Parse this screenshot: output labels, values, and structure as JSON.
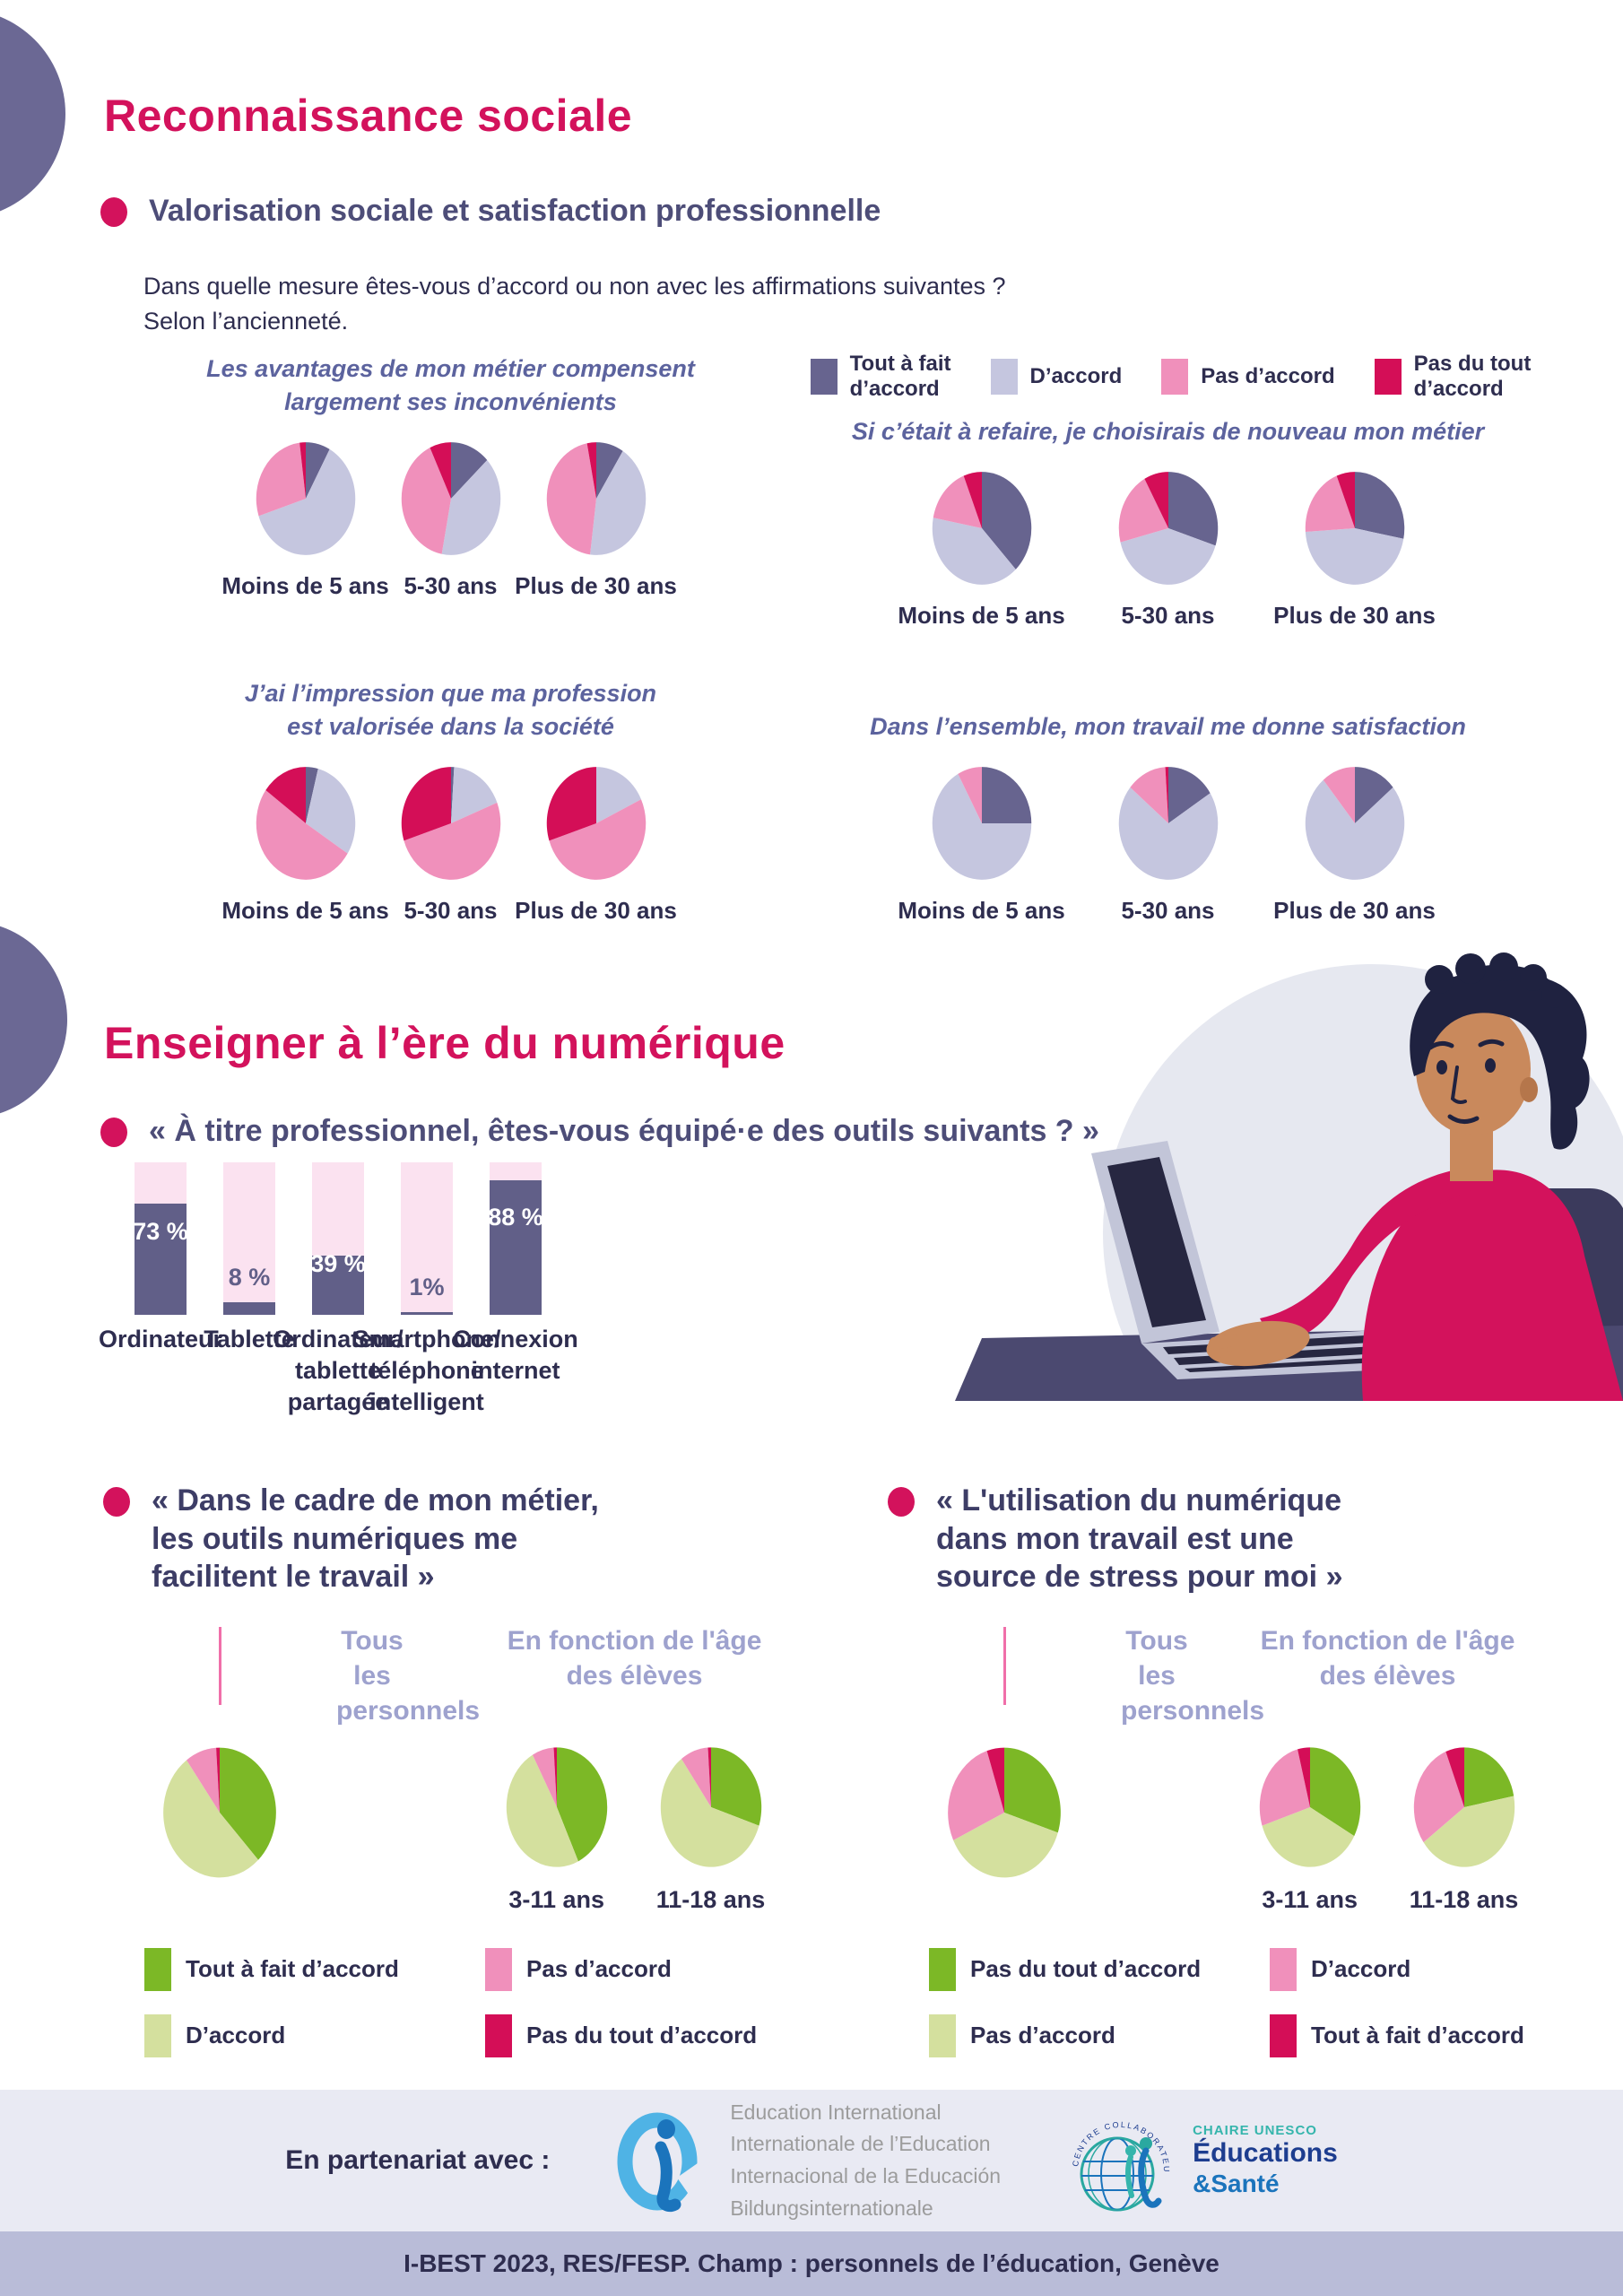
{
  "accent": {
    "magenta": "#D3125C",
    "navy": "#2E2D4F",
    "purple_head": "#4D4D78",
    "lavender_label": "#9EA2CE"
  },
  "section1": {
    "title": "Reconnaissance sociale",
    "subtitle": "Valorisation sociale et satisfaction professionnelle",
    "intro": "Dans quelle mesure êtes-vous d’accord ou non avec les affirmations suivantes ?\nSelon l’ancienneté.",
    "legend": [
      {
        "label": "Tout à fait\nd’accord",
        "color": "#67648F"
      },
      {
        "label": "D’accord",
        "color": "#C5C6DF"
      },
      {
        "label": "Pas d’accord",
        "color": "#F090BB"
      },
      {
        "label": "Pas du tout\nd’accord",
        "color": "#D40E57"
      }
    ]
  },
  "section2": {
    "title": "Enseigner à l’ère du numérique",
    "equip_question": "« À titre professionnel, êtes-vous équipé·e des outils suivants ? »"
  },
  "q_left": {
    "heading": "« Dans le cadre de mon métier,\nles outils numériques me\nfacilitent le travail »",
    "col_left": "Tous les\npersonnels",
    "col_right": "En fonction de l'âge\ndes élèves",
    "legend": [
      {
        "label": "Tout à fait d’accord",
        "color": "#7CB826"
      },
      {
        "label": "Pas d’accord",
        "color": "#F090BB"
      },
      {
        "label": "D’accord",
        "color": "#D4E09E"
      },
      {
        "label": "Pas du tout d’accord",
        "color": "#D40E57"
      }
    ]
  },
  "q_right": {
    "heading": "« L'utilisation du numérique\ndans mon travail est une\nsource de stress pour moi »",
    "col_left": "Tous les\npersonnels",
    "col_right": "En fonction de l'âge\ndes élèves",
    "legend": [
      {
        "label": "Pas du tout d’accord",
        "color": "#7CB826"
      },
      {
        "label": "D’accord",
        "color": "#F090BB"
      },
      {
        "label": "Pas d’accord",
        "color": "#D4E09E"
      },
      {
        "label": "Tout à fait d’accord",
        "color": "#D40E57"
      }
    ]
  },
  "footer": {
    "partner_label": "En partenariat avec :",
    "ei_lines": [
      "Education International",
      "Internationale de l’Education",
      "Internacional de la Educación",
      "Bildungsinternationale"
    ],
    "unesco_arc": "CENTRE COLLABORATEUR UMS",
    "unesco_chaire": "CHAIRE UNESCO",
    "unesco_line1": "Éducations",
    "unesco_line2": "&Santé",
    "footnote": "I-BEST 2023, RES/FESP. Champ : personnels de l’éducation, Genève"
  },
  "chart_data": [
    {
      "type": "pie",
      "title": "Les avantages de mon métier compensent\nlargement ses inconvénients",
      "slice_labels": [
        "Tout à fait d’accord",
        "D’accord",
        "Pas d’accord",
        "Pas du tout d’accord"
      ],
      "slice_colors": [
        "#67648F",
        "#C5C6DF",
        "#F090BB",
        "#D40E57"
      ],
      "unit": "%",
      "pies": [
        {
          "label": "Moins de 5 ans",
          "values": [
            8,
            62,
            28,
            2
          ]
        },
        {
          "label": "5-30 ans",
          "values": [
            13,
            40,
            40,
            7
          ]
        },
        {
          "label": "Plus de 30 ans",
          "values": [
            9,
            43,
            45,
            3
          ]
        }
      ]
    },
    {
      "type": "pie",
      "title": "Si c’était à refaire, je choisirais de nouveau mon métier",
      "slice_labels": [
        "Tout à fait d’accord",
        "D’accord",
        "Pas d’accord",
        "Pas du tout d’accord"
      ],
      "slice_colors": [
        "#67648F",
        "#C5C6DF",
        "#F090BB",
        "#D40E57"
      ],
      "unit": "%",
      "pies": [
        {
          "label": "Moins de 5 ans",
          "values": [
            38,
            40,
            16,
            6
          ]
        },
        {
          "label": "5-30 ans",
          "values": [
            30,
            41,
            21,
            8
          ]
        },
        {
          "label": "Plus de 30 ans",
          "values": [
            28,
            46,
            20,
            6
          ]
        }
      ]
    },
    {
      "type": "pie",
      "title": "J’ai l’impression que ma profession\nest valorisée dans la société",
      "slice_labels": [
        "Tout à fait d’accord",
        "D’accord",
        "Pas d’accord",
        "Pas du tout d’accord"
      ],
      "slice_colors": [
        "#67648F",
        "#C5C6DF",
        "#F090BB",
        "#D40E57"
      ],
      "unit": "%",
      "pies": [
        {
          "label": "Moins de 5 ans",
          "values": [
            4,
            30,
            51,
            15
          ]
        },
        {
          "label": "5-30 ans",
          "values": [
            1,
            18,
            51,
            30
          ]
        },
        {
          "label": "Plus de 30 ans",
          "values": [
            0,
            18,
            52,
            30
          ]
        }
      ]
    },
    {
      "type": "pie",
      "title": "Dans l’ensemble, mon travail me donne satisfaction",
      "slice_labels": [
        "Tout à fait d’accord",
        "D’accord",
        "Pas d’accord",
        "Pas du tout d’accord"
      ],
      "slice_colors": [
        "#67648F",
        "#C5C6DF",
        "#F090BB",
        "#D40E57"
      ],
      "unit": "%",
      "pies": [
        {
          "label": "Moins de 5 ans",
          "values": [
            25,
            67,
            8,
            0
          ]
        },
        {
          "label": "5-30 ans",
          "values": [
            16,
            70,
            13,
            1
          ]
        },
        {
          "label": "Plus de 30 ans",
          "values": [
            14,
            75,
            11,
            0
          ]
        }
      ]
    },
    {
      "type": "bar",
      "title": "« À titre professionnel, êtes-vous équipé·e des outils suivants ? »",
      "categories": [
        "Ordinateur",
        "Tablette",
        "Ordinateur/\ntablette\npartagée",
        "Smartphone/\ntéléphone\nintelligent",
        "Connexion\ninternet"
      ],
      "values": [
        73,
        8,
        39,
        1,
        88
      ],
      "value_labels": [
        "73 %",
        "8 %",
        "39 %",
        "1%",
        "88 %"
      ],
      "ylim": [
        0,
        100
      ],
      "unit": "%",
      "track_color": "#FBE2F0",
      "fill_color": "#615F88"
    },
    {
      "type": "pie",
      "title": "« Dans le cadre de mon métier, les outils numériques me facilitent le travail »",
      "slice_labels": [
        "Tout à fait d’accord",
        "D’accord",
        "Pas d’accord",
        "Pas du tout d’accord"
      ],
      "slice_colors": [
        "#7CB826",
        "#D4E09E",
        "#F090BB",
        "#D40E57"
      ],
      "unit": "%",
      "pies": [
        {
          "label": "Tous les personnels",
          "values": [
            38,
            52,
            9,
            1
          ]
        },
        {
          "label": "3-11 ans",
          "values": [
            43,
            49,
            7,
            1
          ]
        },
        {
          "label": "11-18 ans",
          "values": [
            30,
            60,
            9,
            1
          ]
        }
      ]
    },
    {
      "type": "pie",
      "title": "« L'utilisation du numérique dans mon travail est une source de stress pour moi »",
      "slice_labels": [
        "Pas du tout d’accord",
        "Pas d’accord",
        "D’accord",
        "Tout à fait d’accord"
      ],
      "slice_colors": [
        "#7CB826",
        "#D4E09E",
        "#F090BB",
        "#D40E57"
      ],
      "unit": "%",
      "pies": [
        {
          "label": "Tous les personnels",
          "values": [
            30,
            38,
            27,
            5
          ]
        },
        {
          "label": "3-11 ans",
          "values": [
            33,
            37,
            26,
            4
          ]
        },
        {
          "label": "11-18 ans",
          "values": [
            22,
            43,
            29,
            6
          ]
        }
      ]
    }
  ]
}
